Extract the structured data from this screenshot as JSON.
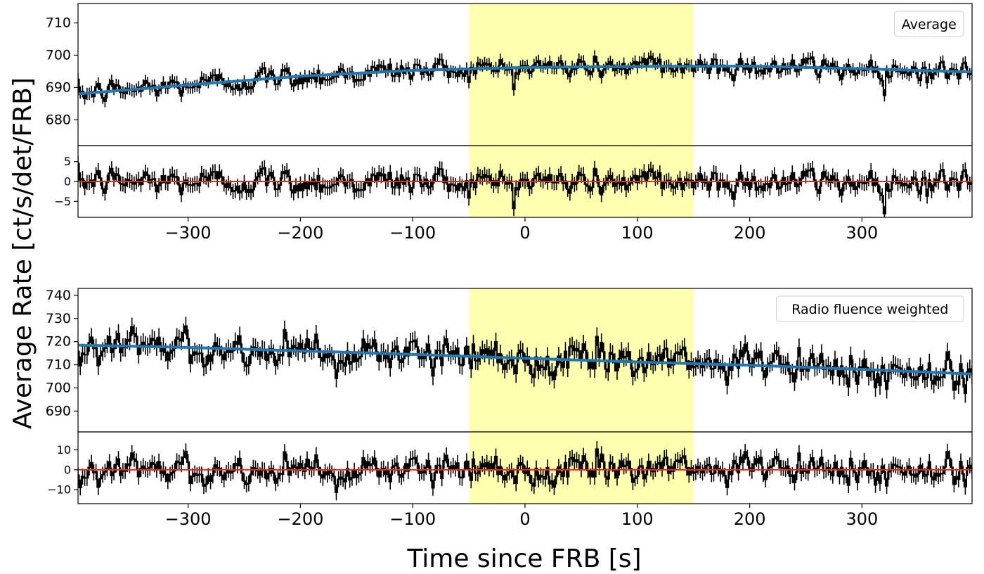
{
  "labels": {
    "ylabel": "Average Rate [ct/s/det/FRB]",
    "xlabel": "Time since FRB [s]"
  },
  "colors": {
    "data": "#000000",
    "model": "#1f77b4",
    "zero_line": "#e8281e",
    "highlight": "#ffffb0"
  },
  "chart_data": [
    {
      "type": "line",
      "panel": "top-main",
      "legend": "Average",
      "legend_placement": "top-right",
      "xlim": [
        -398,
        398
      ],
      "ylim": [
        672,
        716
      ],
      "yticks": [
        680,
        690,
        700,
        710
      ],
      "highlight_x": [
        -50,
        150
      ],
      "bin_width_s": 2,
      "model": {
        "x": [
          -398,
          -300,
          -200,
          -100,
          0,
          100,
          200,
          300,
          398
        ],
        "y": [
          688,
          690.8,
          693.5,
          695.3,
          696.2,
          696.5,
          696.6,
          695.8,
          694.8
        ]
      },
      "noise_amplitude": 2.5,
      "error_bar": 1.9
    },
    {
      "type": "line",
      "panel": "top-residual",
      "xlim": [
        -398,
        398
      ],
      "ylim": [
        -9,
        9
      ],
      "yticks": [
        -5,
        0,
        5
      ],
      "xticks": [
        -300,
        -200,
        -100,
        0,
        100,
        200,
        300
      ],
      "highlight_x": [
        -50,
        150
      ],
      "zero_line": 0,
      "error_bar": 1.9
    },
    {
      "type": "line",
      "panel": "bottom-main",
      "legend": "Radio fluence weighted",
      "legend_placement": "top-right",
      "xlim": [
        -398,
        398
      ],
      "ylim": [
        681,
        743
      ],
      "yticks": [
        690,
        700,
        710,
        720,
        730,
        740
      ],
      "highlight_x": [
        -50,
        150
      ],
      "bin_width_s": 2,
      "model": {
        "x": [
          -398,
          -300,
          -200,
          -100,
          0,
          100,
          200,
          300,
          398
        ],
        "y": [
          718.5,
          717.5,
          716,
          714.5,
          712.8,
          711.2,
          709.8,
          708,
          706
        ]
      },
      "noise_amplitude": 5.5,
      "error_bar": 4
    },
    {
      "type": "line",
      "panel": "bottom-residual",
      "xlim": [
        -398,
        398
      ],
      "ylim": [
        -17,
        19
      ],
      "yticks": [
        -10,
        0,
        10
      ],
      "xticks": [
        -300,
        -200,
        -100,
        0,
        100,
        200,
        300
      ],
      "highlight_x": [
        -50,
        150
      ],
      "zero_line": 0,
      "error_bar": 4
    }
  ]
}
